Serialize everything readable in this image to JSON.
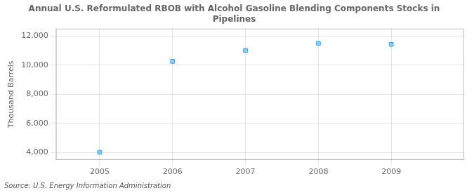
{
  "chart_data": {
    "type": "scatter",
    "title": "Annual U.S. Reformulated RBOB with Alcohol Gasoline Blending Components Stocks in\nPipelines",
    "ylabel": "Thousand Barrels",
    "annotation": "Source: U.S. Energy Information Administration",
    "x": [
      2005,
      2006,
      2007,
      2008,
      2009
    ],
    "values": [
      4020,
      10260,
      11000,
      11490,
      11420
    ],
    "marker": "square",
    "xlim": [
      2004.4,
      2010.0
    ],
    "xticks": [
      2005,
      2006,
      2007,
      2008,
      2009
    ],
    "ylim": [
      3500,
      12500
    ],
    "yticks": [
      {
        "value": 4000,
        "label": "4,000"
      },
      {
        "value": 6000,
        "label": "6,000"
      },
      {
        "value": 8000,
        "label": "8,000"
      },
      {
        "value": 10000,
        "label": "10,000"
      },
      {
        "value": 12000,
        "label": "12,000"
      }
    ],
    "grid": true
  }
}
